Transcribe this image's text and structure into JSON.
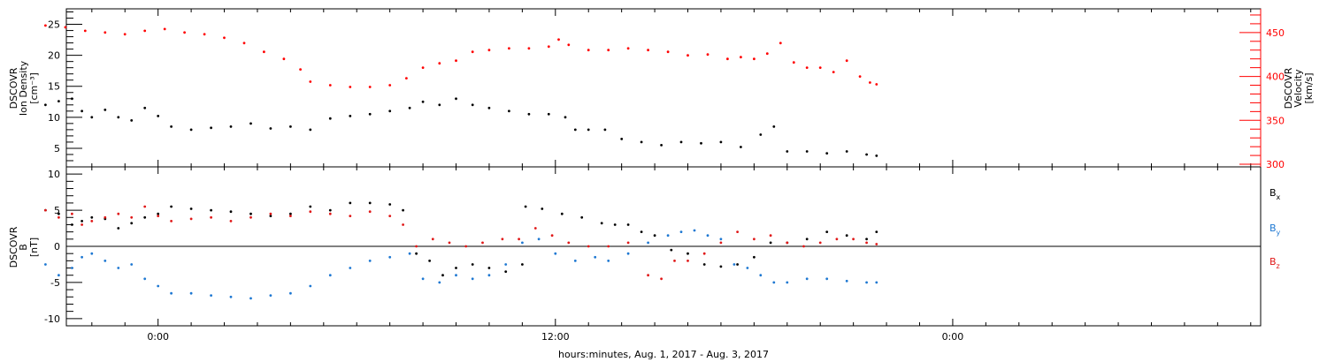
{
  "chart_data": [
    {
      "type": "scatter",
      "panel": "top",
      "title": "",
      "ylabel_left": [
        "DSCOVR",
        "Ion Density",
        "[cm⁻³]"
      ],
      "ylabel_right": [
        "DSCOVR",
        "Velocity",
        "[km/s]"
      ],
      "ylim_left": [
        2,
        27.5
      ],
      "ylim_right": [
        297,
        477
      ],
      "yticks_left": [
        5,
        10,
        15,
        20,
        25
      ],
      "yticks_right": [
        300,
        350,
        400,
        450
      ],
      "series": [
        {
          "axis": "left",
          "color": "#000000",
          "points": [
            [
              -3.4,
              12
            ],
            [
              -3.0,
              12.6
            ],
            [
              -2.6,
              13
            ],
            [
              -2.3,
              11
            ],
            [
              -2.0,
              10
            ],
            [
              -1.6,
              11.2
            ],
            [
              -1.2,
              10
            ],
            [
              -0.8,
              9.5
            ],
            [
              -0.4,
              11.5
            ],
            [
              0.0,
              10.2
            ],
            [
              0.4,
              8.5
            ],
            [
              1.0,
              8
            ],
            [
              1.6,
              8.3
            ],
            [
              2.2,
              8.5
            ],
            [
              2.8,
              9
            ],
            [
              3.4,
              8.2
            ],
            [
              4.0,
              8.5
            ],
            [
              4.6,
              8
            ],
            [
              5.2,
              9.8
            ],
            [
              5.8,
              10.2
            ],
            [
              6.4,
              10.5
            ],
            [
              7.0,
              11
            ],
            [
              7.6,
              11.5
            ],
            [
              8.0,
              12.5
            ],
            [
              8.5,
              12
            ],
            [
              9.0,
              13
            ],
            [
              9.5,
              12
            ],
            [
              10.0,
              11.5
            ],
            [
              10.6,
              11
            ],
            [
              11.2,
              10.5
            ],
            [
              11.8,
              10.5
            ],
            [
              12.3,
              10
            ],
            [
              12.6,
              8
            ],
            [
              13.0,
              8
            ],
            [
              13.5,
              8
            ],
            [
              14.0,
              6.5
            ],
            [
              14.6,
              6
            ],
            [
              15.2,
              5.5
            ],
            [
              15.8,
              6
            ],
            [
              16.4,
              5.8
            ],
            [
              17.0,
              6
            ],
            [
              17.6,
              5.2
            ],
            [
              18.2,
              7.2
            ],
            [
              18.6,
              8.5
            ],
            [
              19.0,
              4.5
            ],
            [
              19.6,
              4.5
            ],
            [
              20.2,
              4.2
            ],
            [
              20.8,
              4.5
            ],
            [
              21.4,
              4
            ],
            [
              21.7,
              3.8
            ]
          ]
        },
        {
          "axis": "right",
          "color": "#ff0000",
          "points": [
            [
              -3.4,
              458
            ],
            [
              -2.8,
              456
            ],
            [
              -2.2,
              452
            ],
            [
              -1.6,
              450
            ],
            [
              -1.0,
              448
            ],
            [
              -0.4,
              452
            ],
            [
              0.2,
              454
            ],
            [
              0.8,
              450
            ],
            [
              1.4,
              448
            ],
            [
              2.0,
              444
            ],
            [
              2.6,
              438
            ],
            [
              3.2,
              428
            ],
            [
              3.8,
              420
            ],
            [
              4.3,
              408
            ],
            [
              4.6,
              394
            ],
            [
              5.2,
              390
            ],
            [
              5.8,
              388
            ],
            [
              6.4,
              388
            ],
            [
              7.0,
              390
            ],
            [
              7.5,
              398
            ],
            [
              8.0,
              410
            ],
            [
              8.5,
              415
            ],
            [
              9.0,
              418
            ],
            [
              9.5,
              428
            ],
            [
              10.0,
              430
            ],
            [
              10.6,
              432
            ],
            [
              11.2,
              432
            ],
            [
              11.8,
              434
            ],
            [
              12.1,
              442
            ],
            [
              12.4,
              436
            ],
            [
              13.0,
              430
            ],
            [
              13.6,
              430
            ],
            [
              14.2,
              432
            ],
            [
              14.8,
              430
            ],
            [
              15.4,
              428
            ],
            [
              16.0,
              424
            ],
            [
              16.6,
              425
            ],
            [
              17.2,
              420
            ],
            [
              17.6,
              422
            ],
            [
              18.0,
              420
            ],
            [
              18.4,
              426
            ],
            [
              18.8,
              438
            ],
            [
              19.2,
              416
            ],
            [
              19.6,
              410
            ],
            [
              20.0,
              410
            ],
            [
              20.4,
              405
            ],
            [
              20.8,
              418
            ],
            [
              21.2,
              400
            ],
            [
              21.5,
              393
            ],
            [
              21.7,
              391
            ]
          ]
        }
      ]
    },
    {
      "type": "scatter",
      "panel": "bottom",
      "title": "",
      "ylabel_left": [
        "DSCOVR",
        "B",
        "[nT]"
      ],
      "ylim": [
        -11,
        11
      ],
      "yticks": [
        -10,
        -5,
        0,
        5,
        10
      ],
      "zero_line": true,
      "xlabel": "hours:minutes, Aug.  1, 2017 - Aug.  3, 2017",
      "xtick_labels": [
        "0:00",
        "12:00",
        "0:00"
      ],
      "xtick_values": [
        0,
        12,
        24
      ],
      "xlim": [
        -2.77,
        33.3
      ],
      "legend": "right",
      "series": [
        {
          "name": "Bx",
          "color": "#000000",
          "points": [
            [
              -3.4,
              5
            ],
            [
              -3.0,
              4.5
            ],
            [
              -2.6,
              3
            ],
            [
              -2.3,
              3.5
            ],
            [
              -2.0,
              4
            ],
            [
              -1.6,
              3.8
            ],
            [
              -1.2,
              2.5
            ],
            [
              -0.8,
              3.2
            ],
            [
              -0.4,
              4
            ],
            [
              0.0,
              4.5
            ],
            [
              0.4,
              5.5
            ],
            [
              1.0,
              5.2
            ],
            [
              1.6,
              5
            ],
            [
              2.2,
              4.8
            ],
            [
              2.8,
              4.5
            ],
            [
              3.4,
              4.2
            ],
            [
              4.0,
              4.5
            ],
            [
              4.6,
              5.5
            ],
            [
              5.2,
              5
            ],
            [
              5.8,
              6
            ],
            [
              6.4,
              6
            ],
            [
              7.0,
              5.8
            ],
            [
              7.4,
              5
            ],
            [
              7.8,
              -1
            ],
            [
              8.2,
              -2
            ],
            [
              8.6,
              -4
            ],
            [
              9.0,
              -3
            ],
            [
              9.5,
              -2.5
            ],
            [
              10.0,
              -3
            ],
            [
              10.5,
              -3.5
            ],
            [
              11.0,
              -2.5
            ],
            [
              11.1,
              5.5
            ],
            [
              11.6,
              5.2
            ],
            [
              12.2,
              4.5
            ],
            [
              12.8,
              4
            ],
            [
              13.4,
              3.2
            ],
            [
              13.8,
              3
            ],
            [
              14.2,
              3
            ],
            [
              14.6,
              2
            ],
            [
              15.0,
              1.5
            ],
            [
              15.5,
              -0.5
            ],
            [
              16.0,
              -1
            ],
            [
              16.5,
              -2.5
            ],
            [
              17.0,
              -2.8
            ],
            [
              17.5,
              -2.5
            ],
            [
              18.0,
              -1.5
            ],
            [
              18.5,
              0.5
            ],
            [
              19.0,
              0.5
            ],
            [
              19.6,
              1
            ],
            [
              20.2,
              2
            ],
            [
              20.8,
              1.5
            ],
            [
              21.4,
              1
            ],
            [
              21.7,
              2
            ]
          ]
        },
        {
          "name": "By",
          "color": "#1e78d2",
          "points": [
            [
              -3.4,
              -2.5
            ],
            [
              -3.0,
              -4
            ],
            [
              -2.6,
              -3
            ],
            [
              -2.3,
              -1.5
            ],
            [
              -2.0,
              -1
            ],
            [
              -1.6,
              -2
            ],
            [
              -1.2,
              -3
            ],
            [
              -0.8,
              -2.5
            ],
            [
              -0.4,
              -4.5
            ],
            [
              0.0,
              -5.5
            ],
            [
              0.4,
              -6.5
            ],
            [
              1.0,
              -6.5
            ],
            [
              1.6,
              -6.8
            ],
            [
              2.2,
              -7
            ],
            [
              2.8,
              -7.2
            ],
            [
              3.4,
              -6.8
            ],
            [
              4.0,
              -6.5
            ],
            [
              4.6,
              -5.5
            ],
            [
              5.2,
              -4
            ],
            [
              5.8,
              -3
            ],
            [
              6.4,
              -2
            ],
            [
              7.0,
              -1.5
            ],
            [
              7.6,
              -1
            ],
            [
              8.0,
              -4.5
            ],
            [
              8.5,
              -5
            ],
            [
              9.0,
              -4
            ],
            [
              9.5,
              -4.5
            ],
            [
              10.0,
              -4
            ],
            [
              10.5,
              -2.5
            ],
            [
              11.0,
              0.5
            ],
            [
              11.5,
              1
            ],
            [
              12.0,
              -1
            ],
            [
              12.6,
              -2
            ],
            [
              13.2,
              -1.5
            ],
            [
              13.6,
              -2
            ],
            [
              14.2,
              -1
            ],
            [
              14.8,
              0.5
            ],
            [
              15.4,
              1.5
            ],
            [
              15.8,
              2
            ],
            [
              16.2,
              2.2
            ],
            [
              16.6,
              1.5
            ],
            [
              17.0,
              1
            ],
            [
              17.4,
              -2.5
            ],
            [
              17.8,
              -3
            ],
            [
              18.2,
              -4
            ],
            [
              18.6,
              -5
            ],
            [
              19.0,
              -5
            ],
            [
              19.6,
              -4.5
            ],
            [
              20.2,
              -4.5
            ],
            [
              20.8,
              -4.8
            ],
            [
              21.4,
              -5
            ],
            [
              21.7,
              -5
            ]
          ]
        },
        {
          "name": "Bz",
          "color": "#e01818",
          "points": [
            [
              -3.4,
              5
            ],
            [
              -3.0,
              4
            ],
            [
              -2.6,
              4.5
            ],
            [
              -2.3,
              3
            ],
            [
              -2.0,
              3.5
            ],
            [
              -1.6,
              4
            ],
            [
              -1.2,
              4.5
            ],
            [
              -0.8,
              4
            ],
            [
              -0.4,
              5.5
            ],
            [
              0.0,
              4.2
            ],
            [
              0.4,
              3.5
            ],
            [
              1.0,
              3.8
            ],
            [
              1.6,
              4
            ],
            [
              2.2,
              3.5
            ],
            [
              2.8,
              4
            ],
            [
              3.4,
              4.5
            ],
            [
              4.0,
              4.2
            ],
            [
              4.6,
              4.8
            ],
            [
              5.2,
              4.5
            ],
            [
              5.8,
              4.2
            ],
            [
              6.4,
              4.8
            ],
            [
              7.0,
              4.2
            ],
            [
              7.4,
              3
            ],
            [
              7.8,
              0
            ],
            [
              8.3,
              1
            ],
            [
              8.8,
              0.5
            ],
            [
              9.3,
              0
            ],
            [
              9.8,
              0.5
            ],
            [
              10.4,
              1
            ],
            [
              10.9,
              1
            ],
            [
              11.4,
              2.5
            ],
            [
              11.9,
              1.5
            ],
            [
              12.4,
              0.5
            ],
            [
              13.0,
              0
            ],
            [
              13.6,
              0
            ],
            [
              14.2,
              0.5
            ],
            [
              14.8,
              -4
            ],
            [
              15.2,
              -4.5
            ],
            [
              15.6,
              -2
            ],
            [
              16.0,
              -2
            ],
            [
              16.5,
              -1
            ],
            [
              17.0,
              0.5
            ],
            [
              17.5,
              2
            ],
            [
              18.0,
              1
            ],
            [
              18.5,
              1.5
            ],
            [
              19.0,
              0.5
            ],
            [
              19.5,
              0
            ],
            [
              20.0,
              0.5
            ],
            [
              20.5,
              1
            ],
            [
              21.0,
              1
            ],
            [
              21.4,
              0.5
            ],
            [
              21.7,
              0.3
            ]
          ]
        }
      ]
    }
  ],
  "legend": {
    "bx": "B",
    "bx_sub": "x",
    "by": "B",
    "by_sub": "y",
    "bz": "B",
    "bz_sub": "z"
  },
  "labels": {
    "top_left": [
      "DSCOVR",
      "Ion Density",
      "[cm⁻³]"
    ],
    "top_right": [
      "DSCOVR",
      "Velocity",
      "[km/s]"
    ],
    "bottom_left": [
      "DSCOVR",
      "B",
      "[nT]"
    ],
    "xlabel": "hours:minutes, Aug.  1, 2017 - Aug.  3, 2017"
  }
}
